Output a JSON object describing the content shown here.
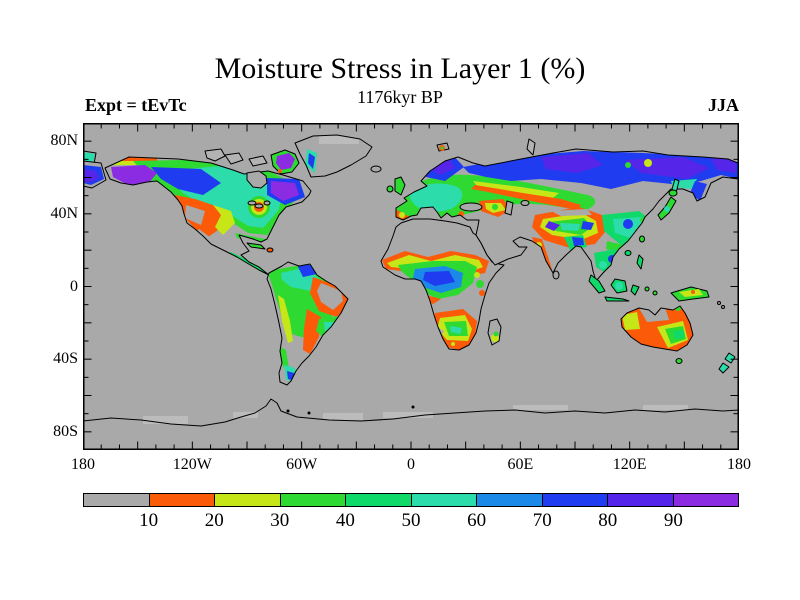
{
  "header": {
    "title": "Moisture Stress in Layer 1 (%)",
    "subtitle": "1176kyr BP",
    "experiment_label": "Expt = tEvTc",
    "season_label": "JJA"
  },
  "chart_data": {
    "type": "heatmap",
    "subtype": "filled-contour world map (equirectangular lat/lon)",
    "title": "Moisture Stress in Layer 1 (%)",
    "subtitle": "1176kyr BP",
    "experiment": "tEvTc",
    "season": "JJA",
    "x_axis": {
      "ticks": [
        {
          "deg": -180,
          "label": "180"
        },
        {
          "deg": -120,
          "label": "120W"
        },
        {
          "deg": -60,
          "label": "60W"
        },
        {
          "deg": 0,
          "label": "0"
        },
        {
          "deg": 60,
          "label": "60E"
        },
        {
          "deg": 120,
          "label": "120E"
        },
        {
          "deg": 180,
          "label": "180"
        }
      ],
      "range_deg": [
        -180,
        180
      ],
      "minor_tick_deg": 10,
      "major_tick_deg": 30
    },
    "y_axis": {
      "ticks": [
        {
          "deg": 80,
          "label": "80N"
        },
        {
          "deg": 40,
          "label": "40N"
        },
        {
          "deg": 0,
          "label": "0"
        },
        {
          "deg": -40,
          "label": "40S"
        },
        {
          "deg": -80,
          "label": "80S"
        }
      ],
      "range_deg": [
        -90,
        90
      ],
      "minor_tick_deg": 10,
      "major_tick_deg": 20
    },
    "colorbar": {
      "bin_edges_pct": [
        0,
        10,
        20,
        30,
        40,
        50,
        60,
        70,
        80,
        90,
        100
      ],
      "labels": [
        "10",
        "20",
        "30",
        "40",
        "50",
        "60",
        "70",
        "80",
        "90"
      ],
      "colors": [
        "#a9a9a9",
        "#fb5a09",
        "#c6e617",
        "#2ed932",
        "#0fd968",
        "#2cdcaa",
        "#1b89e8",
        "#1f3cf0",
        "#5526e9",
        "#8b2be2"
      ],
      "position": "bottom"
    },
    "ocean_color": "#a9a9a9",
    "ice_shelf_color": "#bcbcbc",
    "grid": "off (frame ticks only)",
    "regions_qualitative": [
      {
        "region": "Alaska / NW Canada",
        "stress_pct": "80-100 (blue to violet core)"
      },
      {
        "region": "Central Canada and eastern US",
        "stress_pct": "40-60 (green-turquoise)"
      },
      {
        "region": "Quebec-Labrador and Baffin Island",
        "stress_pct": "80-100 (violet patches)"
      },
      {
        "region": "Western US interior / Great Basin",
        "stress_pct": "0-20 (gray core with orange ring)"
      },
      {
        "region": "Mexico, Sahara, Arabia, Horn of Africa, central Asia deserts",
        "stress_pct": "0-10 (gray)"
      },
      {
        "region": "Sahel band",
        "stress_pct": "10-40 banded orange-yellow-green"
      },
      {
        "region": "Congo basin",
        "stress_pct": "60-80 (blue core)"
      },
      {
        "region": "Southern Africa",
        "stress_pct": "10-50 ringed, gray notch in west"
      },
      {
        "region": "NE Brazil",
        "stress_pct": "0-10 gray core ringed by 10-20 orange"
      },
      {
        "region": "NW South America",
        "stress_pct": "40-80 (green/cyan, blue spot)"
      },
      {
        "region": "Southern Patagonia tip",
        "stress_pct": "50-80 (cyan/blue)"
      },
      {
        "region": "Europe",
        "stress_pct": "30-60; Iberia fringe 10-30"
      },
      {
        "region": "Scandinavia and Siberia",
        "stress_pct": "70-100 (blue band, violet patches)"
      },
      {
        "region": "Tibet/Himalaya",
        "stress_pct": "10-30 orange ring around 40-90 core"
      },
      {
        "region": "China and SE Asia",
        "stress_pct": "40-80"
      },
      {
        "region": "India",
        "stress_pct": "0-10 with 10-20 western strip"
      },
      {
        "region": "Australia",
        "stress_pct": "10-20 orange, gray north core, 20-50 west spot and SE"
      },
      {
        "region": "Antarctica and Greenland interior",
        "stress_pct": "0-10 (gray, light ice-shelf patches)"
      },
      {
        "region": "Oceans",
        "stress_pct": "masked (gray)"
      }
    ]
  }
}
